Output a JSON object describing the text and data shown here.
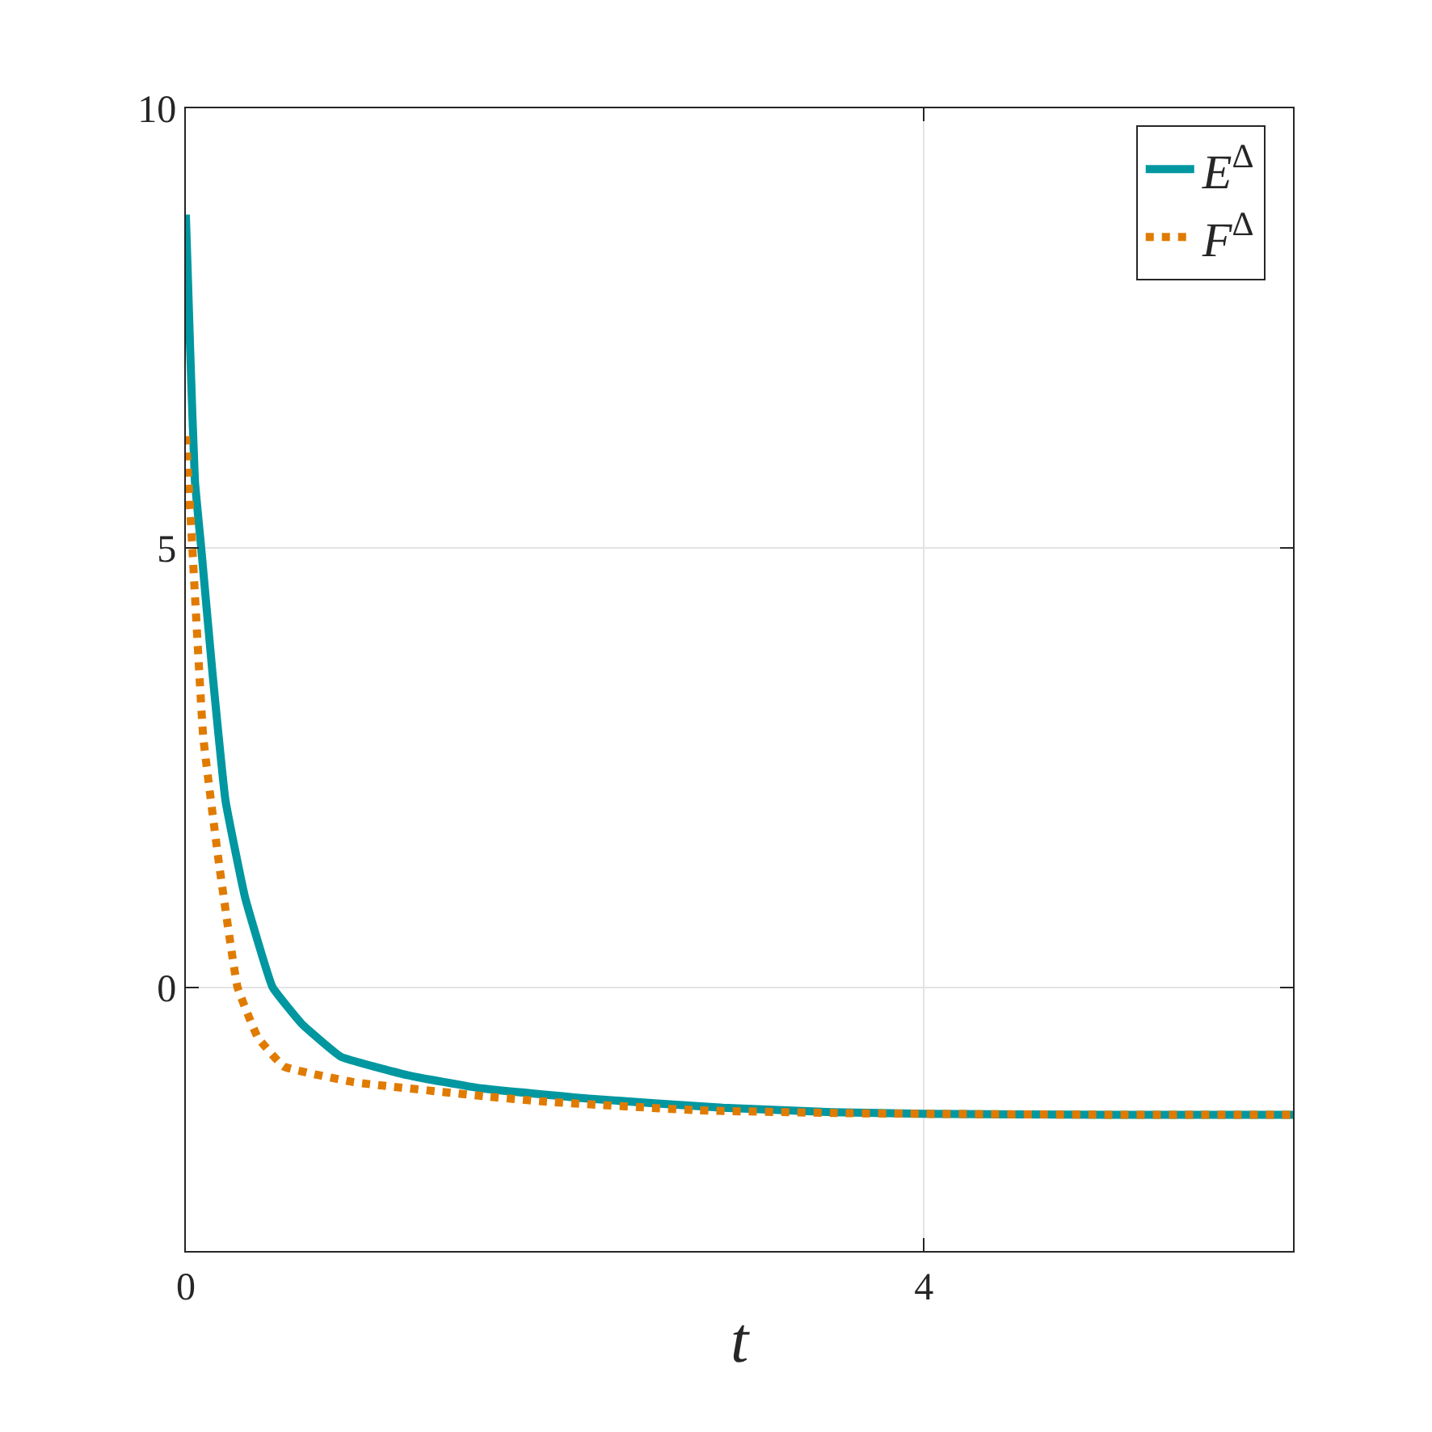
{
  "chart_data": {
    "type": "line",
    "xlabel": "t",
    "xlim": [
      0,
      6
    ],
    "ylim": [
      -3,
      10
    ],
    "xticks": [
      0,
      4
    ],
    "yticks": [
      0,
      5,
      10
    ],
    "grid": true,
    "legend": "top right",
    "series": [
      {
        "name": "E$^{Δ}$",
        "color": "#0097a0",
        "line_style": "solid",
        "x": [
          0,
          0.024,
          0.049,
          0.083,
          0.144,
          0.215,
          0.32,
          0.47,
          0.63,
          0.84,
          1.2,
          1.6,
          2.2,
          2.91,
          3.5,
          4,
          5,
          6
        ],
        "values": [
          8.79,
          7.21,
          5.76,
          5,
          3.58,
          2.12,
          1.03,
          0,
          -0.42,
          -0.79,
          -1.0,
          -1.15,
          -1.27,
          -1.37,
          -1.42,
          -1.44,
          -1.45,
          -1.45
        ]
      },
      {
        "name": "F$^{Δ}$",
        "color": "#e07b00",
        "line_style": "dotted",
        "x": [
          0,
          0.035,
          0.094,
          0.18,
          0.28,
          0.39,
          0.53,
          0.91,
          1.62,
          1.94,
          2.78,
          3.5,
          4,
          5,
          6
        ],
        "values": [
          6.27,
          5,
          2.85,
          1.4,
          0,
          -0.57,
          -0.9,
          -1.08,
          -1.24,
          -1.3,
          -1.4,
          -1.43,
          -1.44,
          -1.45,
          -1.45
        ]
      }
    ]
  }
}
